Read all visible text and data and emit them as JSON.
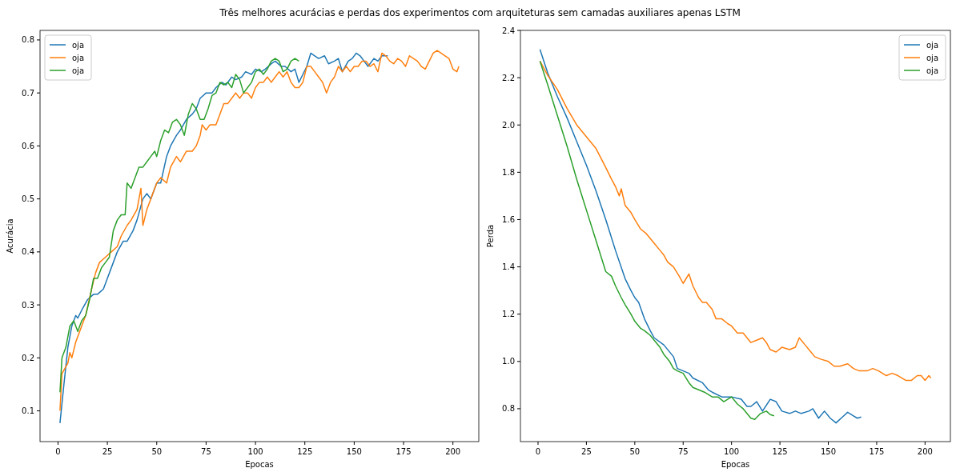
{
  "chart_data": [
    {
      "type": "line",
      "title": "Três melhores acurácias e perdas dos experimentos com arquiteturas sem camadas auxiliares apenas LSTM",
      "xlabel": "Epocas",
      "ylabel": "Acurácia",
      "xlim": [
        -9.1,
        213.1
      ],
      "ylim": [
        0.042,
        0.818
      ],
      "xticks": [
        0,
        25,
        50,
        75,
        100,
        125,
        150,
        175,
        200
      ],
      "yticks": [
        {
          "value": 0.1,
          "label": "0.1"
        },
        {
          "value": 0.2,
          "label": "0.2"
        },
        {
          "value": 0.3,
          "label": "0.3"
        },
        {
          "value": 0.4,
          "label": "0.4"
        },
        {
          "value": 0.5,
          "label": "0.5"
        },
        {
          "value": 0.6,
          "label": "0.6"
        },
        {
          "value": 0.7,
          "label": "0.7"
        },
        {
          "value": 0.8,
          "label": "0.8"
        }
      ],
      "legend": "top left",
      "grid": false,
      "series": [
        {
          "name": "oja",
          "color": "#1f77b4",
          "x": [
            1,
            3,
            5,
            7,
            9,
            10,
            12,
            15,
            18,
            20,
            23,
            25,
            28,
            30,
            33,
            35,
            38,
            40,
            43,
            45,
            47,
            50,
            52,
            55,
            57,
            60,
            62,
            65,
            68,
            70,
            72,
            75,
            78,
            80,
            83,
            85,
            88,
            90,
            93,
            95,
            98,
            100,
            103,
            105,
            108,
            110,
            113,
            115,
            118,
            120,
            122,
            124,
            126,
            128,
            130,
            132,
            135,
            137,
            140,
            142,
            144,
            147,
            149,
            151,
            153,
            155,
            157,
            160,
            162,
            164,
            167
          ],
          "values": [
            0.077,
            0.15,
            0.22,
            0.26,
            0.28,
            0.275,
            0.29,
            0.31,
            0.32,
            0.32,
            0.33,
            0.35,
            0.38,
            0.4,
            0.42,
            0.42,
            0.44,
            0.46,
            0.5,
            0.51,
            0.5,
            0.53,
            0.53,
            0.58,
            0.6,
            0.62,
            0.63,
            0.65,
            0.66,
            0.67,
            0.69,
            0.7,
            0.7,
            0.71,
            0.72,
            0.715,
            0.73,
            0.725,
            0.73,
            0.74,
            0.735,
            0.745,
            0.74,
            0.745,
            0.755,
            0.76,
            0.75,
            0.75,
            0.74,
            0.745,
            0.72,
            0.735,
            0.75,
            0.775,
            0.77,
            0.765,
            0.77,
            0.755,
            0.76,
            0.765,
            0.74,
            0.76,
            0.765,
            0.775,
            0.77,
            0.76,
            0.75,
            0.765,
            0.76,
            0.77,
            0.77
          ]
        },
        {
          "name": "oja",
          "color": "#ff7f0e",
          "x": [
            1,
            2,
            5,
            6,
            7,
            9,
            12,
            14,
            17,
            19,
            21,
            24,
            27,
            30,
            32,
            35,
            37,
            40,
            42,
            43,
            45,
            47,
            50,
            52,
            55,
            57,
            60,
            62,
            65,
            68,
            70,
            72,
            73,
            75,
            77,
            80,
            82,
            84,
            86,
            88,
            90,
            92,
            94,
            96,
            98,
            100,
            102,
            104,
            106,
            108,
            110,
            112,
            114,
            116,
            118,
            120,
            122,
            124,
            126,
            128,
            130,
            132,
            134,
            136,
            138,
            140,
            142,
            144,
            146,
            148,
            150,
            152,
            154,
            156,
            158,
            160,
            162,
            164,
            166,
            168,
            170,
            172,
            174,
            176,
            178,
            180,
            182,
            184,
            186,
            188,
            190,
            192,
            194,
            196,
            198,
            200,
            202,
            203
          ],
          "values": [
            0.1,
            0.17,
            0.19,
            0.21,
            0.2,
            0.23,
            0.26,
            0.28,
            0.33,
            0.36,
            0.38,
            0.39,
            0.4,
            0.41,
            0.43,
            0.45,
            0.46,
            0.48,
            0.52,
            0.45,
            0.48,
            0.5,
            0.53,
            0.54,
            0.53,
            0.56,
            0.58,
            0.57,
            0.59,
            0.59,
            0.6,
            0.62,
            0.64,
            0.63,
            0.64,
            0.64,
            0.66,
            0.68,
            0.68,
            0.69,
            0.7,
            0.69,
            0.7,
            0.7,
            0.69,
            0.71,
            0.72,
            0.72,
            0.73,
            0.72,
            0.73,
            0.74,
            0.73,
            0.74,
            0.72,
            0.71,
            0.71,
            0.72,
            0.75,
            0.75,
            0.74,
            0.73,
            0.72,
            0.7,
            0.72,
            0.73,
            0.75,
            0.74,
            0.75,
            0.74,
            0.75,
            0.75,
            0.76,
            0.76,
            0.75,
            0.755,
            0.74,
            0.775,
            0.77,
            0.76,
            0.755,
            0.765,
            0.76,
            0.75,
            0.77,
            0.765,
            0.76,
            0.75,
            0.745,
            0.76,
            0.775,
            0.78,
            0.775,
            0.77,
            0.765,
            0.745,
            0.74,
            0.75
          ]
        },
        {
          "name": "oja",
          "color": "#2ca02c",
          "x": [
            1,
            2,
            4,
            6,
            8,
            10,
            12,
            14,
            16,
            18,
            20,
            22,
            24,
            26,
            28,
            30,
            32,
            34,
            35,
            37,
            39,
            41,
            43,
            45,
            47,
            49,
            50,
            52,
            54,
            56,
            58,
            60,
            62,
            64,
            66,
            68,
            70,
            72,
            74,
            76,
            78,
            80,
            82,
            84,
            86,
            88,
            90,
            92,
            94,
            96,
            98,
            100,
            102,
            104,
            106,
            108,
            110,
            112,
            114,
            116,
            118,
            120,
            122
          ],
          "values": [
            0.135,
            0.2,
            0.22,
            0.26,
            0.27,
            0.25,
            0.27,
            0.28,
            0.31,
            0.35,
            0.35,
            0.37,
            0.38,
            0.39,
            0.44,
            0.46,
            0.47,
            0.47,
            0.53,
            0.52,
            0.54,
            0.56,
            0.56,
            0.57,
            0.58,
            0.59,
            0.58,
            0.61,
            0.63,
            0.625,
            0.645,
            0.65,
            0.64,
            0.62,
            0.66,
            0.68,
            0.67,
            0.65,
            0.65,
            0.67,
            0.695,
            0.7,
            0.72,
            0.715,
            0.72,
            0.71,
            0.735,
            0.725,
            0.7,
            0.71,
            0.72,
            0.74,
            0.745,
            0.735,
            0.745,
            0.76,
            0.765,
            0.76,
            0.74,
            0.745,
            0.76,
            0.765,
            0.76
          ]
        }
      ]
    },
    {
      "type": "line",
      "xlabel": "Epocas",
      "ylabel": "Perda",
      "xlim": [
        -9.1,
        213.1
      ],
      "ylim": [
        0.661,
        2.4
      ],
      "xticks": [
        0,
        25,
        50,
        75,
        100,
        125,
        150,
        175,
        200
      ],
      "yticks": [
        {
          "value": 0.8,
          "label": "0.8"
        },
        {
          "value": 1.0,
          "label": "1.0"
        },
        {
          "value": 1.2,
          "label": "1.2"
        },
        {
          "value": 1.4,
          "label": "1.4"
        },
        {
          "value": 1.6,
          "label": "1.6"
        },
        {
          "value": 1.8,
          "label": "1.8"
        },
        {
          "value": 2.0,
          "label": "2.0"
        },
        {
          "value": 2.2,
          "label": "2.2"
        },
        {
          "value": 2.4,
          "label": "2.4"
        }
      ],
      "legend": "top right",
      "grid": false,
      "series": [
        {
          "name": "oja",
          "color": "#1f77b4",
          "x": [
            1,
            5,
            10,
            15,
            20,
            25,
            30,
            35,
            40,
            45,
            48,
            50,
            52,
            55,
            58,
            60,
            65,
            70,
            72,
            75,
            78,
            80,
            85,
            88,
            90,
            95,
            100,
            105,
            108,
            110,
            113,
            116,
            120,
            123,
            126,
            130,
            133,
            136,
            140,
            142,
            145,
            148,
            151,
            154,
            158,
            160,
            163,
            165,
            167
          ],
          "values": [
            2.32,
            2.22,
            2.12,
            2.03,
            1.93,
            1.83,
            1.72,
            1.6,
            1.47,
            1.35,
            1.3,
            1.27,
            1.25,
            1.18,
            1.13,
            1.1,
            1.07,
            1.02,
            0.97,
            0.96,
            0.95,
            0.93,
            0.91,
            0.88,
            0.87,
            0.85,
            0.85,
            0.84,
            0.81,
            0.81,
            0.83,
            0.79,
            0.84,
            0.83,
            0.79,
            0.78,
            0.79,
            0.78,
            0.79,
            0.8,
            0.76,
            0.79,
            0.76,
            0.74,
            0.77,
            0.785,
            0.77,
            0.76,
            0.765
          ]
        },
        {
          "name": "oja",
          "color": "#ff7f0e",
          "x": [
            1,
            5,
            10,
            15,
            20,
            25,
            30,
            35,
            38,
            40,
            42,
            43,
            45,
            48,
            50,
            53,
            56,
            60,
            63,
            65,
            67,
            70,
            73,
            75,
            78,
            80,
            83,
            85,
            87,
            90,
            92,
            95,
            98,
            100,
            103,
            106,
            110,
            113,
            116,
            118,
            120,
            123,
            126,
            130,
            133,
            135,
            138,
            140,
            143,
            146,
            150,
            153,
            156,
            160,
            163,
            166,
            170,
            173,
            176,
            180,
            183,
            186,
            190,
            193,
            196,
            198,
            200,
            202,
            203
          ],
          "values": [
            2.27,
            2.21,
            2.15,
            2.07,
            2.0,
            1.95,
            1.9,
            1.82,
            1.77,
            1.74,
            1.7,
            1.73,
            1.66,
            1.63,
            1.6,
            1.56,
            1.54,
            1.5,
            1.47,
            1.45,
            1.42,
            1.4,
            1.36,
            1.33,
            1.37,
            1.32,
            1.27,
            1.25,
            1.25,
            1.22,
            1.18,
            1.18,
            1.16,
            1.15,
            1.12,
            1.12,
            1.08,
            1.09,
            1.1,
            1.08,
            1.05,
            1.04,
            1.06,
            1.05,
            1.06,
            1.1,
            1.07,
            1.05,
            1.02,
            1.01,
            1.0,
            0.98,
            0.98,
            0.99,
            0.97,
            0.96,
            0.96,
            0.97,
            0.96,
            0.94,
            0.95,
            0.94,
            0.92,
            0.92,
            0.94,
            0.94,
            0.92,
            0.94,
            0.93
          ]
        },
        {
          "name": "oja",
          "color": "#2ca02c",
          "x": [
            1,
            5,
            10,
            15,
            20,
            25,
            30,
            35,
            38,
            40,
            43,
            45,
            48,
            50,
            53,
            55,
            58,
            60,
            63,
            65,
            68,
            70,
            72,
            75,
            78,
            80,
            83,
            86,
            90,
            93,
            96,
            100,
            103,
            106,
            110,
            112,
            115,
            118,
            120,
            122
          ],
          "values": [
            2.27,
            2.17,
            2.04,
            1.91,
            1.77,
            1.64,
            1.51,
            1.38,
            1.36,
            1.32,
            1.27,
            1.24,
            1.2,
            1.17,
            1.14,
            1.13,
            1.11,
            1.09,
            1.06,
            1.03,
            1.0,
            0.97,
            0.96,
            0.95,
            0.91,
            0.89,
            0.88,
            0.87,
            0.85,
            0.85,
            0.83,
            0.85,
            0.82,
            0.8,
            0.76,
            0.755,
            0.78,
            0.79,
            0.775,
            0.77
          ]
        }
      ]
    }
  ]
}
